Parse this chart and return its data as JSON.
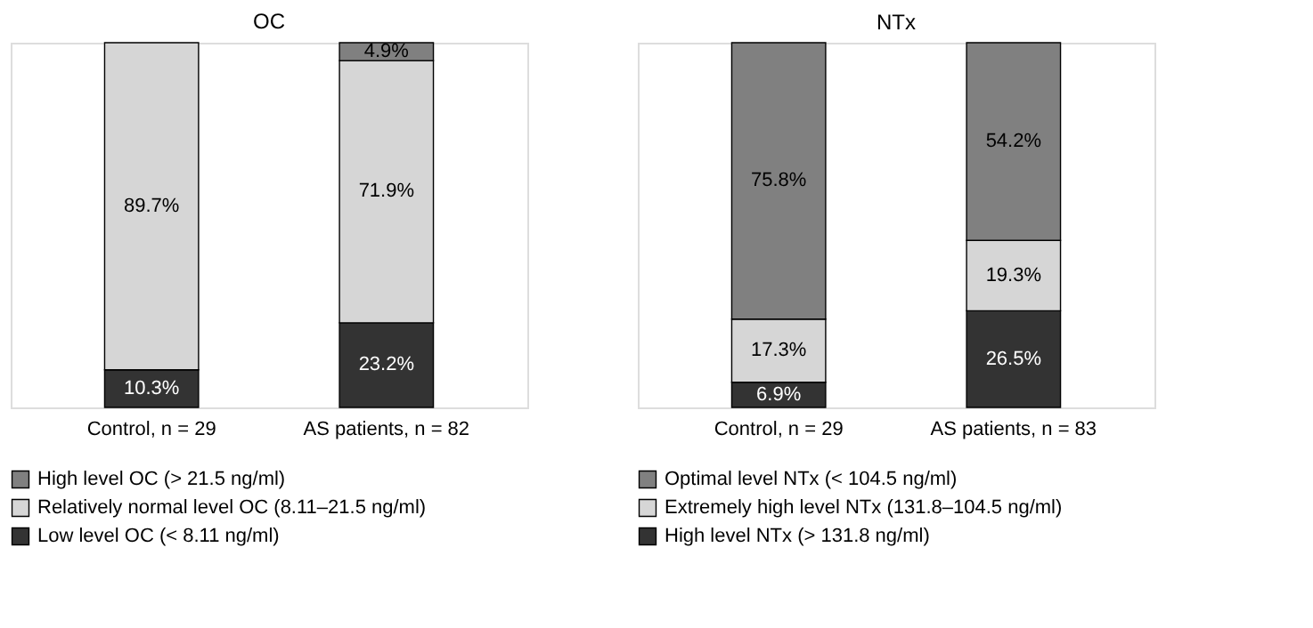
{
  "chart_data": [
    {
      "type": "bar",
      "title": "OC",
      "categories": [
        "Control, n = 29",
        "AS patients, n = 82"
      ],
      "stacked": true,
      "legend": "bottom",
      "series": [
        {
          "name": "Low level OC (< 8.11 ng/ml)",
          "color": "#333333",
          "values": [
            10.3,
            23.2
          ],
          "value_labels": [
            "10.3%",
            "23.2%"
          ]
        },
        {
          "name": "Relatively normal level OC (8.11–21.5 ng/ml)",
          "color": "#d6d6d6",
          "values": [
            89.7,
            71.9
          ],
          "value_labels": [
            "89.7%",
            "71.9%"
          ]
        },
        {
          "name": "High level OC (> 21.5 ng/ml)",
          "color": "#808080",
          "values": [
            null,
            4.9
          ],
          "value_labels": [
            null,
            "4.9%"
          ]
        }
      ]
    },
    {
      "type": "bar",
      "title": "NTx",
      "categories": [
        "Control, n = 29",
        "AS patients, n = 83"
      ],
      "stacked": true,
      "legend": "bottom",
      "series": [
        {
          "name": "High level NTx (> 131.8 ng/ml)",
          "color": "#333333",
          "values": [
            6.9,
            26.5
          ],
          "value_labels": [
            "6.9%",
            "26.5%"
          ]
        },
        {
          "name": "Extremely high level NTx (131.8–104.5 ng/ml)",
          "color": "#d6d6d6",
          "values": [
            17.3,
            19.3
          ],
          "value_labels": [
            "17.3%",
            "19.3%"
          ]
        },
        {
          "name": "Optimal level NTx (< 104.5 ng/ml)",
          "color": "#808080",
          "values": [
            75.8,
            54.2
          ],
          "value_labels": [
            "75.8%",
            "54.2%"
          ]
        }
      ]
    }
  ]
}
